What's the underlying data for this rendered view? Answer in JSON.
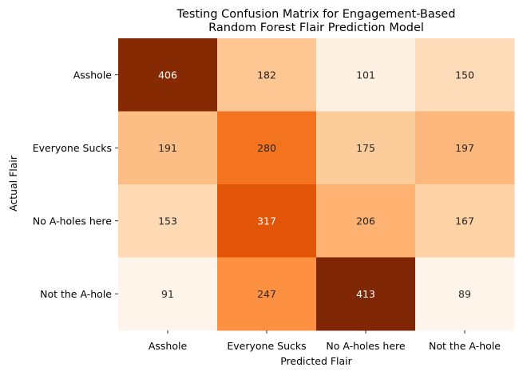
{
  "chart_data": {
    "type": "heatmap",
    "title": "Testing Confusion Matrix for Engagement-Based\nRandom Forest Flair Prediction Model",
    "xlabel": "Predicted Flair",
    "ylabel": "Actual Flair",
    "x_categories": [
      "Asshole",
      "Everyone Sucks",
      "No A-holes here",
      "Not the A-hole"
    ],
    "y_categories": [
      "Asshole",
      "Everyone Sucks",
      "No A-holes here",
      "Not the A-hole"
    ],
    "values": [
      [
        406,
        182,
        101,
        150
      ],
      [
        191,
        280,
        175,
        197
      ],
      [
        153,
        317,
        206,
        167
      ],
      [
        91,
        247,
        413,
        89
      ]
    ],
    "colormap": "Oranges",
    "value_range": [
      89,
      413
    ],
    "colorbar": false
  }
}
